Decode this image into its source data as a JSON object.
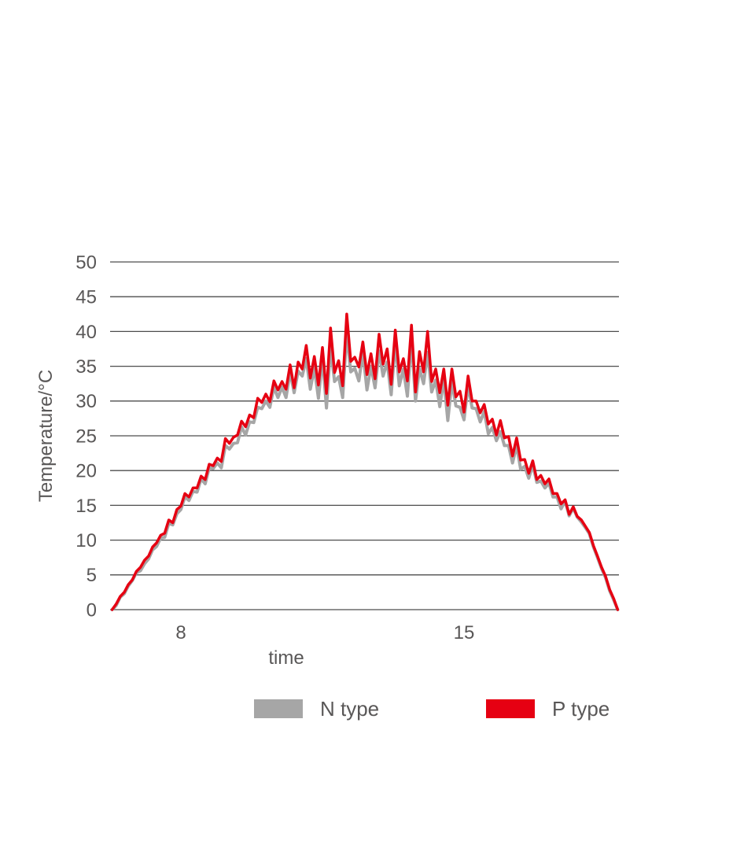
{
  "chart_data": {
    "type": "line",
    "title": "",
    "xlabel": "time",
    "ylabel": "Temperature/°C",
    "ylim": [
      0,
      50
    ],
    "xlim": [
      6.25,
      18.85
    ],
    "grid": "horizontal-only",
    "legend_position": "bottom",
    "grid_color": "#4d4d4d",
    "text_color": "#595757",
    "y_ticks": [
      0,
      5,
      10,
      15,
      20,
      25,
      30,
      35,
      40,
      45,
      50
    ],
    "x_ticks": [
      {
        "label": "8",
        "value": 8
      },
      {
        "label": "15",
        "value": 15
      }
    ],
    "x": [
      6.3,
      6.4,
      6.5,
      6.6,
      6.7,
      6.8,
      6.9,
      7.0,
      7.1,
      7.2,
      7.3,
      7.4,
      7.5,
      7.6,
      7.7,
      7.8,
      7.9,
      8.0,
      8.1,
      8.2,
      8.3,
      8.4,
      8.5,
      8.6,
      8.7,
      8.8,
      8.9,
      9.0,
      9.1,
      9.2,
      9.3,
      9.4,
      9.5,
      9.6,
      9.7,
      9.8,
      9.9,
      10.0,
      10.1,
      10.2,
      10.3,
      10.4,
      10.5,
      10.6,
      10.7,
      10.8,
      10.9,
      11.0,
      11.1,
      11.2,
      11.3,
      11.4,
      11.5,
      11.6,
      11.7,
      11.8,
      11.9,
      12.0,
      12.1,
      12.2,
      12.3,
      12.4,
      12.5,
      12.6,
      12.7,
      12.8,
      12.9,
      13.0,
      13.1,
      13.2,
      13.3,
      13.4,
      13.5,
      13.6,
      13.7,
      13.8,
      13.9,
      14.0,
      14.1,
      14.2,
      14.3,
      14.4,
      14.5,
      14.6,
      14.7,
      14.8,
      14.9,
      15.0,
      15.1,
      15.2,
      15.3,
      15.4,
      15.5,
      15.6,
      15.7,
      15.8,
      15.9,
      16.0,
      16.1,
      16.2,
      16.3,
      16.4,
      16.5,
      16.6,
      16.7,
      16.8,
      16.9,
      17.0,
      17.1,
      17.2,
      17.3,
      17.4,
      17.5,
      17.6,
      17.7,
      17.8,
      17.9,
      18.0,
      18.1,
      18.2,
      18.3,
      18.4,
      18.5,
      18.6,
      18.7,
      18.8
    ],
    "series": [
      {
        "name": "N type",
        "color": "#a6a6a6",
        "values": [
          0.0,
          0.6,
          1.8,
          2.3,
          3.4,
          4.2,
          5.3,
          5.6,
          6.6,
          7.3,
          8.6,
          9.1,
          10.3,
          10.4,
          12.4,
          12.2,
          13.8,
          14.4,
          16.2,
          15.7,
          17.0,
          16.9,
          18.8,
          18.1,
          20.4,
          20.3,
          21.1,
          20.4,
          23.6,
          23.1,
          23.9,
          24.0,
          26.3,
          25.1,
          27.0,
          26.9,
          29.1,
          28.9,
          30.0,
          29.1,
          32.0,
          30.5,
          32.0,
          30.5,
          34.2,
          31.2,
          34.3,
          33.6,
          36.1,
          31.7,
          34.8,
          30.4,
          36.3,
          29.0,
          37.8,
          32.8,
          33.5,
          30.5,
          39.8,
          34.2,
          34.7,
          32.9,
          37.1,
          31.6,
          35.0,
          31.9,
          37.2,
          33.6,
          35.6,
          30.9,
          38.5,
          32.2,
          34.6,
          30.7,
          39.0,
          30.0,
          34.7,
          32.5,
          37.0,
          31.3,
          33.0,
          29.2,
          33.2,
          27.2,
          32.8,
          29.3,
          29.1,
          27.3,
          32.3,
          29.0,
          28.9,
          27.0,
          28.5,
          25.3,
          26.2,
          24.3,
          25.6,
          23.6,
          23.6,
          21.1,
          23.6,
          20.2,
          20.6,
          18.9,
          20.8,
          18.3,
          18.5,
          17.5,
          18.2,
          16.2,
          16.2,
          14.5,
          15.6,
          13.5,
          14.6,
          13.3,
          12.6,
          11.8,
          10.9,
          9.0,
          7.5,
          5.9,
          4.6,
          2.7,
          1.4,
          0.0
        ]
      },
      {
        "name": "P type",
        "color": "#e60012",
        "values": [
          0.0,
          0.8,
          1.9,
          2.5,
          3.6,
          4.3,
          5.5,
          6.1,
          7.1,
          7.7,
          9.0,
          9.6,
          10.7,
          11.0,
          12.9,
          12.5,
          14.4,
          14.9,
          16.7,
          16.2,
          17.5,
          17.5,
          19.2,
          18.7,
          20.9,
          20.7,
          21.8,
          21.3,
          24.6,
          23.9,
          24.8,
          25.1,
          27.1,
          26.3,
          28.0,
          27.6,
          30.4,
          29.8,
          31.0,
          29.9,
          32.9,
          31.6,
          32.8,
          31.7,
          35.2,
          31.9,
          35.6,
          34.6,
          38.0,
          33.3,
          36.4,
          32.3,
          37.7,
          31.1,
          40.5,
          34.1,
          35.8,
          32.2,
          42.5,
          35.7,
          36.3,
          34.9,
          38.5,
          33.8,
          36.8,
          33.2,
          39.6,
          35.3,
          37.5,
          32.4,
          40.2,
          34.2,
          36.1,
          32.9,
          40.9,
          31.3,
          37.1,
          34.2,
          40.0,
          32.8,
          34.6,
          31.2,
          34.6,
          29.4,
          34.6,
          30.6,
          31.4,
          28.4,
          33.6,
          30.0,
          30.0,
          28.3,
          29.5,
          26.7,
          27.4,
          25.1,
          27.2,
          24.7,
          24.9,
          22.1,
          24.7,
          21.5,
          21.6,
          19.6,
          21.4,
          18.7,
          19.3,
          18.1,
          18.8,
          16.7,
          16.7,
          15.2,
          15.8,
          13.7,
          14.8,
          13.4,
          12.9,
          12.0,
          11.1,
          9.2,
          7.7,
          6.1,
          4.8,
          2.9,
          1.6,
          0.0
        ]
      }
    ]
  }
}
